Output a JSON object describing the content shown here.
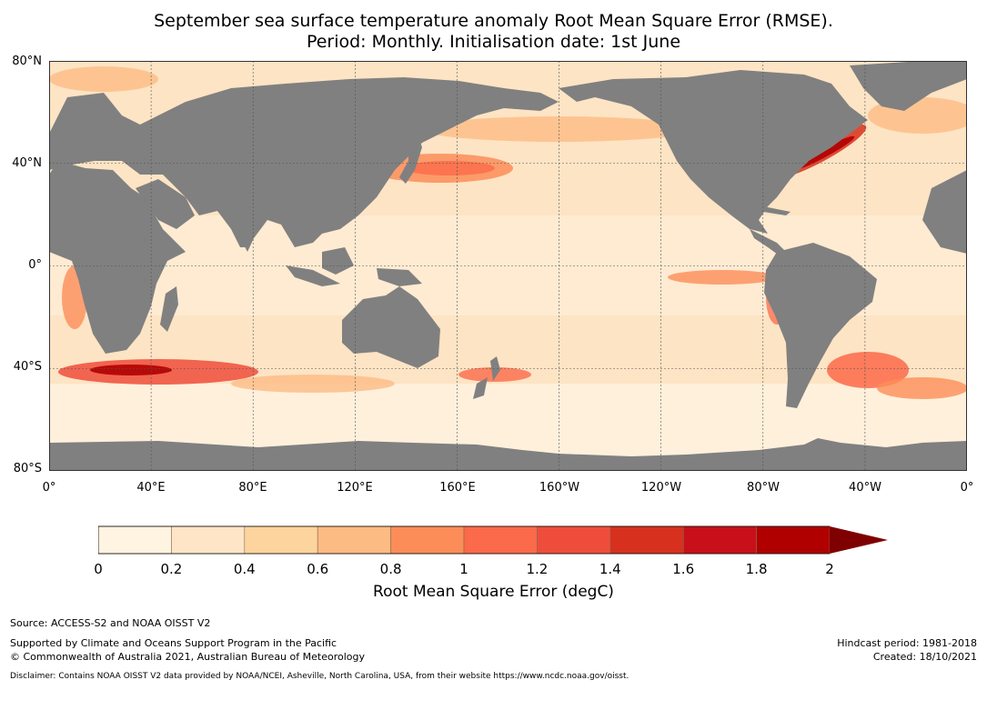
{
  "title": {
    "line1": "September sea surface temperature anomaly Root Mean Square Error (RMSE).",
    "line2": "Period: Monthly. Initialisation date: 1st June"
  },
  "map": {
    "lat_labels": [
      "80°N",
      "40°N",
      "0°",
      "40°S",
      "80°S"
    ],
    "lon_labels": [
      "0°",
      "40°E",
      "80°E",
      "120°E",
      "160°E",
      "160°W",
      "120°W",
      "80°W",
      "40°W",
      "0°"
    ],
    "land_color": "#808080",
    "grid_color": "#555555"
  },
  "colorbar": {
    "ticks": [
      "0",
      "0.2",
      "0.4",
      "0.6",
      "0.8",
      "1",
      "1.2",
      "1.4",
      "1.6",
      "1.8",
      "2"
    ],
    "colors": [
      "#fff3e1",
      "#fee5c8",
      "#fdd49e",
      "#fdbb84",
      "#fc8d59",
      "#fb6a4a",
      "#ef4d3c",
      "#d7301f",
      "#c8101a",
      "#b00000"
    ],
    "extend_color": "#7f0000",
    "label": "Root Mean Square Error (degC)"
  },
  "footer": {
    "source": "Source: ACCESS-S2 and NOAA OISST V2",
    "supported": "Supported by Climate and Oceans Support Program in the Pacific",
    "copyright": "© Commonwealth of Australia 2021, Australian Bureau of Meteorology",
    "disclaimer": "Disclaimer: Contains NOAA OISST V2 data provided by NOAA/NCEI, Asheville, North Carolina, USA, from their website https://www.ncdc.noaa.gov/oisst.",
    "hindcast": "Hindcast period: 1981-2018",
    "created": "Created: 18/10/2021"
  }
}
